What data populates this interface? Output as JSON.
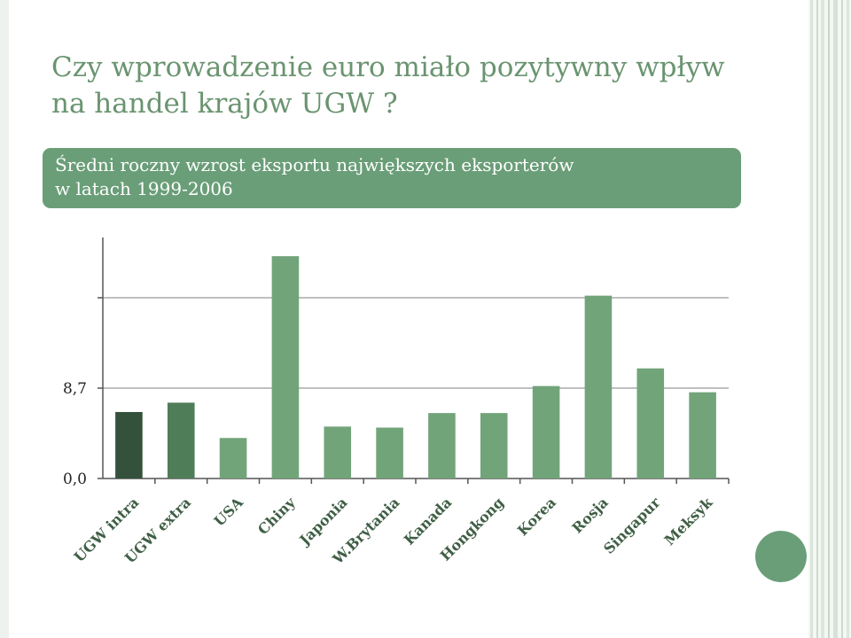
{
  "slide": {
    "title_line1": "Czy wprowadzenie euro miało pozytywny wpływ",
    "title_line2": "na handel krajów UGW ?",
    "subtitle_line1": "Średni roczny wzrost eksportu największych eksporterów",
    "subtitle_line2": "w latach 1999-2006"
  },
  "colors": {
    "accent": "#6a9e78",
    "bar_default": "#72a47a",
    "bar_ugw_intra": "#34523b",
    "bar_ugw_extra": "#4f7d58",
    "gridline": "#bfbfbf"
  },
  "chart_data": {
    "type": "bar",
    "title": "",
    "xlabel": "",
    "ylabel": "",
    "categories": [
      "UGW intra",
      "UGW extra",
      "USA",
      "Chiny",
      "Japonia",
      "W.Brytania",
      "Kanada",
      "Hongkong",
      "Korea",
      "Rosja",
      "Singapur",
      "Meksyk"
    ],
    "values": [
      6.4,
      7.3,
      3.9,
      21.4,
      5.0,
      4.9,
      6.3,
      6.3,
      8.9,
      17.6,
      10.6,
      8.3
    ],
    "ylim": [
      0,
      23.2
    ],
    "yticks": [
      0,
      8.7,
      17.4
    ],
    "ytick_labels": [
      "0,0",
      "8,7",
      ""
    ],
    "grid": true,
    "legend": "none"
  }
}
